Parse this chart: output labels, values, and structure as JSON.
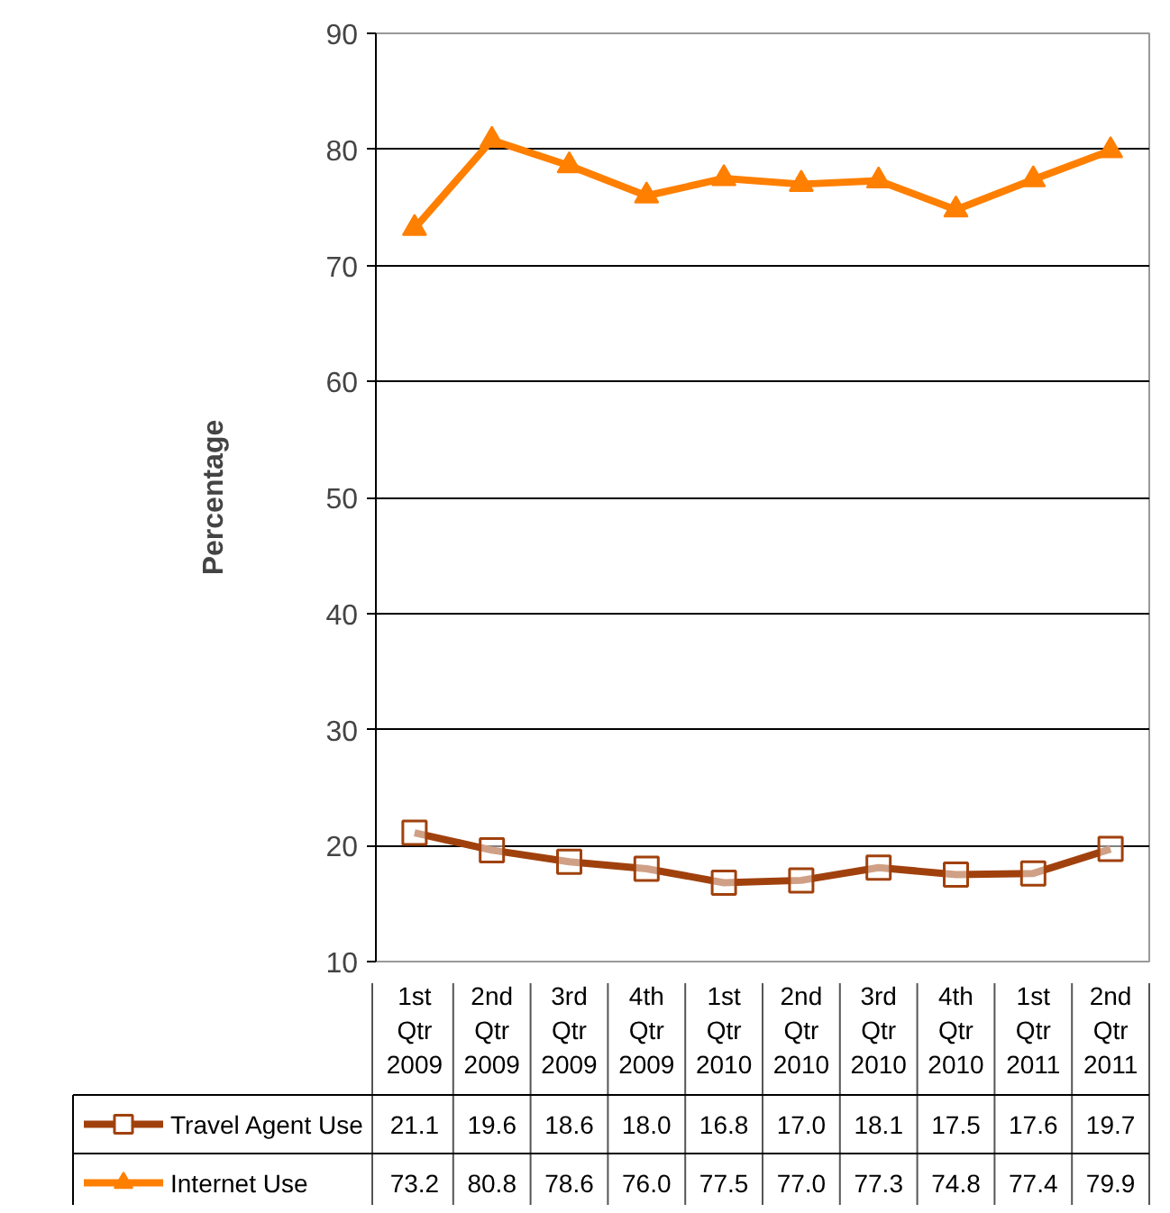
{
  "chart_data": {
    "type": "line",
    "ylabel": "Percentage",
    "categories": [
      "1st Qtr 2009",
      "2nd Qtr 2009",
      "3rd Qtr 2009",
      "4th Qtr 2009",
      "1st Qtr 2010",
      "2nd Qtr 2010",
      "3rd Qtr 2010",
      "4th Qtr 2010",
      "1st Qtr 2011",
      "2nd Qtr 2011"
    ],
    "series": [
      {
        "name": "Travel Agent Use",
        "color": "#a0410d",
        "marker": "square",
        "values": [
          21.1,
          19.6,
          18.6,
          18.0,
          16.8,
          17.0,
          18.1,
          17.5,
          17.6,
          19.7
        ],
        "value_labels": [
          "21.1",
          "19.6",
          "18.6",
          "18.0",
          "16.8",
          "17.0",
          "18.1",
          "17.5",
          "17.6",
          "19.7"
        ]
      },
      {
        "name": "Internet Use",
        "color": "#ff7f00",
        "marker": "triangle",
        "values": [
          73.2,
          80.8,
          78.6,
          76.0,
          77.5,
          77.0,
          77.3,
          74.8,
          77.4,
          79.9
        ],
        "value_labels": [
          "73.2",
          "80.8",
          "78.6",
          "76.0",
          "77.5",
          "77.0",
          "77.3",
          "74.8",
          "77.4",
          "79.9"
        ]
      }
    ],
    "ylim": [
      10,
      90
    ],
    "yticks": [
      10,
      20,
      30,
      40,
      50,
      60,
      70,
      80,
      90
    ],
    "grid": "y",
    "legend": "bottom"
  }
}
